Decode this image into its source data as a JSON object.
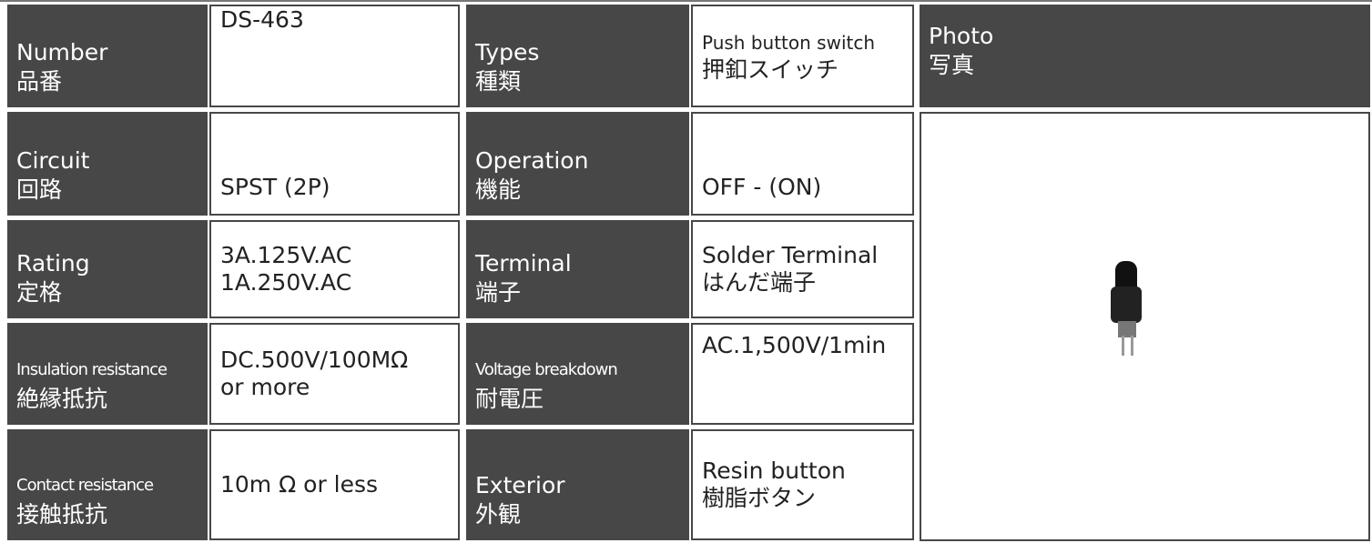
{
  "left": {
    "rows": [
      {
        "label": [
          "Number",
          "品番"
        ],
        "value": [
          "DS-463"
        ]
      },
      {
        "label": [
          "Circuit",
          "回路"
        ],
        "value": [
          "SPST (2P)"
        ]
      },
      {
        "label": [
          "Rating",
          "定格"
        ],
        "value": [
          "3A.125V.AC",
          "1A.250V.AC"
        ]
      },
      {
        "label": [
          "Insulation resistance",
          "絶縁抵抗"
        ],
        "value": [
          "DC.500V/100MΩ",
          "or more"
        ]
      },
      {
        "label": [
          "Contact resistance",
          "接触抵抗"
        ],
        "value": [
          "10m Ω or less"
        ]
      }
    ]
  },
  "middle": {
    "rows": [
      {
        "label": [
          "Types",
          "種類"
        ],
        "value": [
          "Push button switch",
          "押釦スイッチ"
        ]
      },
      {
        "label": [
          "Operation",
          "機能"
        ],
        "value": [
          "OFF - (ON)"
        ]
      },
      {
        "label": [
          "Terminal",
          "端子"
        ],
        "value": [
          "Solder Terminal",
          "はんだ端子"
        ]
      },
      {
        "label": [
          "Voltage breakdown",
          "耐電圧"
        ],
        "value": [
          "AC.1,500V/1min"
        ]
      },
      {
        "label": [
          "Exterior",
          "外観"
        ],
        "value": [
          "Resin button",
          "樹脂ボタン"
        ]
      }
    ]
  },
  "photo": {
    "label": [
      "Photo",
      "写真"
    ]
  }
}
